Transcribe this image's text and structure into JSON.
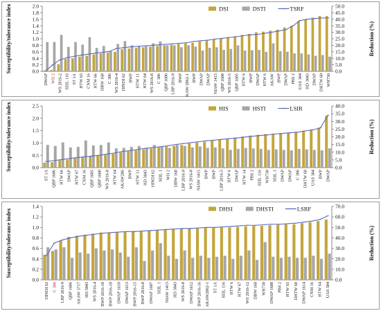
{
  "chart_data": [
    {
      "type": "bar",
      "ylabel": "Susceptibility/tolerance index",
      "y2label": "Reduction (%)",
      "ylim": [
        0,
        2.0
      ],
      "yticks": [
        "0.0",
        "0.2",
        "0.4",
        "0.6",
        "0.8",
        "1.0",
        "1.2",
        "1.4",
        "1.6",
        "1.8",
        "2.0"
      ],
      "y2lim": [
        0,
        50
      ],
      "y2ticks": [
        "0.0",
        "5.0",
        "10.0",
        "15.0",
        "20.0",
        "25.0",
        "30.0",
        "35.0",
        "40.0",
        "45.0",
        "50.0"
      ],
      "legend_position": "top-right",
      "categories": [
        "DWAP",
        "WH 2",
        "WS 2016-2",
        "SEIL 116",
        "ST 1A",
        "HTW 65",
        "CNM 16",
        "HTW 66",
        "DBW 168",
        "C 306",
        "WS 2016-4",
        "HINDI 62",
        "BWP",
        "HTW 11",
        "HTW 64",
        "WS 2016-8",
        "C 306",
        "QBP 1606",
        "LBP 2016-9",
        "BWP",
        "AKAW 2862-1",
        "BWP",
        "DWAP",
        "DWAP",
        "NIAW 1415",
        "QBP 1608",
        "WS 2016-5",
        "QBP 1605",
        "HTW 6",
        "BWP",
        "DWAP",
        "HTW 6",
        "AKAW",
        "BWP",
        "DWAP",
        "PBS 2",
        "UAS 304",
        "HD 3043",
        "DWAP",
        "DHTW 60",
        "WH730"
      ],
      "category_colors": {
        "WH 2": "#c0182b"
      },
      "series": [
        {
          "name": "DSI",
          "kind": "bar",
          "color": "#c4a53d",
          "values": [
            0.02,
            0.04,
            0.22,
            0.38,
            0.4,
            0.45,
            0.48,
            0.52,
            0.55,
            0.58,
            0.6,
            0.68,
            0.7,
            0.72,
            0.74,
            0.76,
            0.78,
            0.8,
            0.82,
            0.84,
            0.86,
            0.88,
            0.92,
            0.95,
            0.98,
            1.02,
            1.05,
            1.08,
            1.12,
            1.15,
            1.2,
            1.22,
            1.25,
            1.28,
            1.35,
            1.4,
            1.55,
            1.6,
            1.65,
            1.7,
            1.7
          ]
        },
        {
          "name": "DSTI",
          "kind": "bar",
          "color": "#a6a6a6",
          "values": [
            0.9,
            0.9,
            1.12,
            0.75,
            0.9,
            0.82,
            1.05,
            0.72,
            0.78,
            0.62,
            0.84,
            0.93,
            0.8,
            0.78,
            0.77,
            0.86,
            0.92,
            0.8,
            0.8,
            0.74,
            0.8,
            0.76,
            0.64,
            0.72,
            0.74,
            0.66,
            0.69,
            0.8,
            0.64,
            0.65,
            0.66,
            0.6,
            0.86,
            0.62,
            0.6,
            0.55,
            0.55,
            0.52,
            0.48,
            0.5,
            0.45
          ]
        },
        {
          "name": "TSRF",
          "kind": "line",
          "axis": "y2",
          "color": "#5b6bbf",
          "values": [
            0.5,
            5.0,
            8.8,
            10.5,
            11.5,
            12.4,
            13.2,
            14.0,
            14.6,
            15.3,
            17.5,
            18.2,
            18.8,
            19.2,
            19.6,
            20.0,
            20.4,
            20.8,
            21.2,
            21.6,
            22.0,
            23.0,
            23.5,
            24.0,
            24.8,
            25.4,
            26.0,
            26.6,
            27.4,
            28.0,
            28.4,
            29.2,
            30.0,
            31.0,
            32.0,
            35.0,
            39.0,
            40.0,
            40.5,
            41.0,
            41.0
          ]
        }
      ]
    },
    {
      "type": "bar",
      "ylabel": "Susceptibility/tolerance index",
      "y2label": "Reduction (%)",
      "ylim": [
        0,
        2.5
      ],
      "yticks": [
        "0.0",
        "0.5",
        "1.0",
        "1.5",
        "2.0",
        "2.5"
      ],
      "y2lim": [
        0,
        40
      ],
      "y2ticks": [
        "0.0",
        "5.0",
        "10.0",
        "15.0",
        "20.0",
        "25.0",
        "30.0",
        "35.0",
        "40.0"
      ],
      "legend_position": "top-right",
      "categories": [
        "ST 1A",
        "QBP 1606",
        "HTW 66",
        "DWAP",
        "HTW 67",
        "CNM 16",
        "QBP 1605",
        "QBP 1608",
        "WS 2016-8",
        "HTW 64",
        "AKAW286",
        "BWP",
        "HTW 11",
        "HD 3043",
        "HINDI 62",
        "SEIL 1",
        "WH 2",
        "DBW 168",
        "LBP 2016-9",
        "WS 2016-8",
        "NIAW 1415",
        "BWP",
        "BWP",
        "LBP 2016-5",
        "HTW 6",
        "DWAP",
        "HTW 14",
        "PBS 2",
        "SEIL 116",
        "WH730",
        "SEIL 1",
        "DWAP",
        "DWAP",
        "C 306",
        "DHTW 60",
        "UAS 304",
        "BWP",
        "DWAP"
      ],
      "category_colors": {},
      "series": [
        {
          "name": "HIS",
          "kind": "bar",
          "color": "#c4a53d",
          "values": [
            0.2,
            0.22,
            0.3,
            0.32,
            0.38,
            0.42,
            0.45,
            0.48,
            0.52,
            0.56,
            0.62,
            0.66,
            0.7,
            0.74,
            0.78,
            0.82,
            0.86,
            0.88,
            0.92,
            0.98,
            1.02,
            1.05,
            1.1,
            1.15,
            1.18,
            1.22,
            1.26,
            1.3,
            1.33,
            1.36,
            1.38,
            1.4,
            1.42,
            1.45,
            1.5,
            1.55,
            1.62,
            2.1
          ]
        },
        {
          "name": "HSTI",
          "kind": "bar",
          "color": "#a6a6a6",
          "values": [
            0.92,
            0.88,
            1.02,
            0.82,
            0.84,
            1.1,
            0.9,
            0.92,
            1.02,
            0.78,
            0.8,
            0.84,
            0.88,
            0.8,
            0.92,
            0.86,
            0.8,
            0.92,
            0.88,
            0.82,
            0.86,
            0.8,
            0.82,
            0.78,
            0.72,
            0.76,
            0.8,
            0.78,
            0.76,
            0.72,
            0.74,
            0.72,
            0.7,
            0.76,
            0.74,
            0.72,
            0.7,
            0.78
          ]
        },
        {
          "name": "LSIR",
          "kind": "line",
          "axis": "y2",
          "color": "#5b6bbf",
          "values": [
            4.0,
            4.5,
            5.2,
            5.8,
            6.5,
            7.0,
            7.5,
            8.0,
            8.8,
            9.5,
            10.5,
            11.0,
            11.8,
            12.5,
            13.0,
            13.6,
            14.2,
            15.0,
            15.6,
            16.2,
            16.8,
            17.4,
            17.8,
            18.3,
            18.8,
            19.2,
            19.8,
            20.3,
            20.8,
            21.2,
            21.8,
            22.2,
            22.6,
            23.0,
            23.8,
            24.5,
            25.8,
            34.0
          ]
        }
      ]
    },
    {
      "type": "bar",
      "ylabel": "Susceptibility/tolerance index",
      "y2label": "Reduction (%)",
      "ylim": [
        0,
        1.4
      ],
      "yticks": [
        "0.0",
        "0.2",
        "0.4",
        "0.6",
        "0.8",
        "1.0",
        "1.2",
        "1.4"
      ],
      "y2lim": [
        0,
        70
      ],
      "y2ticks": [
        "0.0",
        "10.0",
        "20.0",
        "30.0",
        "40.0",
        "50.0",
        "60.0",
        "70.0"
      ],
      "legend_position": "top-right",
      "categories": [
        "HINDI 62",
        "C 306",
        "LBP 2016-9",
        "QBP 1606",
        "AKAW 3717",
        "HD 3043",
        "WS 2016-4",
        "BWP 2016-18",
        "BWP 2016-10",
        "DWAP 1610",
        "DWAP 1613",
        "BWP 2016-15",
        "BWP 2016-8",
        "DWAP 1607",
        "SEIL 1",
        "NIAW 1413",
        "HD 3043",
        "WS 2016-8",
        "DWAP 1612",
        "BWP 2016-16",
        "AKAW2862-1",
        "ST 1A",
        "SEIL 116",
        "HTW 6",
        "HTW 67",
        "WS 2016-12",
        "DBW 168",
        "WH730",
        "DWAP 1608",
        "PBS 2",
        "HTW 65",
        "DHTW 60",
        "DWAP 1614",
        "CNM 16",
        "HTW 64",
        "UAS 304"
      ],
      "category_colors": {
        "C 306": "#c0182b"
      },
      "series": [
        {
          "name": "DHSI",
          "kind": "bar",
          "color": "#c4a53d",
          "values": [
            0.48,
            0.55,
            0.75,
            0.82,
            0.84,
            0.86,
            0.88,
            0.9,
            0.9,
            0.91,
            0.92,
            0.93,
            0.93,
            0.94,
            0.95,
            0.96,
            0.97,
            0.97,
            0.98,
            0.98,
            0.99,
            0.99,
            1.0,
            1.0,
            1.01,
            1.02,
            1.03,
            1.03,
            1.04,
            1.05,
            1.06,
            1.06,
            1.08,
            1.1,
            1.12,
            1.15
          ]
        },
        {
          "name": "DHSTI",
          "kind": "bar",
          "color": "#a6a6a6",
          "values": [
            0.62,
            0.58,
            0.62,
            0.42,
            0.52,
            0.5,
            0.6,
            0.56,
            0.58,
            0.52,
            0.44,
            0.62,
            0.36,
            0.56,
            0.7,
            0.46,
            0.4,
            0.56,
            0.42,
            0.46,
            0.42,
            0.44,
            0.46,
            0.4,
            0.46,
            0.56,
            0.38,
            0.72,
            0.44,
            0.42,
            0.44,
            0.42,
            0.42,
            0.46,
            0.4,
            0.5
          ]
        },
        {
          "name": "LSRF",
          "kind": "line",
          "axis": "y2",
          "color": "#5b6bbf",
          "values": [
            23.0,
            35.0,
            38.0,
            40.0,
            41.5,
            42.5,
            43.5,
            44.5,
            45.0,
            45.5,
            46.0,
            46.0,
            46.5,
            47.0,
            47.5,
            48.0,
            48.5,
            49.0,
            49.0,
            49.5,
            50.0,
            50.0,
            50.5,
            51.0,
            51.5,
            52.0,
            52.0,
            52.5,
            53.0,
            53.0,
            53.5,
            54.0,
            55.0,
            56.0,
            57.5,
            61.0
          ]
        }
      ]
    }
  ]
}
